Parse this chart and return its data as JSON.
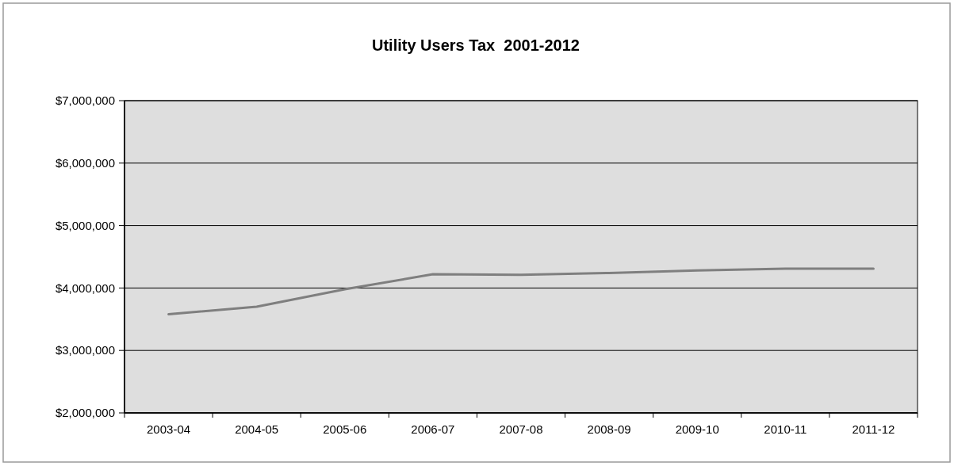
{
  "chart_data": {
    "type": "line",
    "title": "Utility Users Tax  2001-2012",
    "categories": [
      "2003-04",
      "2004-05",
      "2005-06",
      "2006-07",
      "2007-08",
      "2008-09",
      "2009-10",
      "2010-11",
      "2011-12"
    ],
    "series": [
      {
        "color": "#7f7f7f",
        "values": [
          3580000,
          3700000,
          3980000,
          4220000,
          4210000,
          4240000,
          4280000,
          4310000,
          4310000
        ]
      }
    ],
    "ylim": [
      2000000,
      7000000
    ],
    "yticks": [
      {
        "value": 2000000,
        "label": "$2,000,000"
      },
      {
        "value": 3000000,
        "label": "$3,000,000"
      },
      {
        "value": 4000000,
        "label": "$4,000,000"
      },
      {
        "value": 5000000,
        "label": "$5,000,000"
      },
      {
        "value": 6000000,
        "label": "$6,000,000"
      },
      {
        "value": 7000000,
        "label": "$7,000,000"
      }
    ],
    "grid": "y",
    "marker": "none",
    "line_style": "solid"
  }
}
